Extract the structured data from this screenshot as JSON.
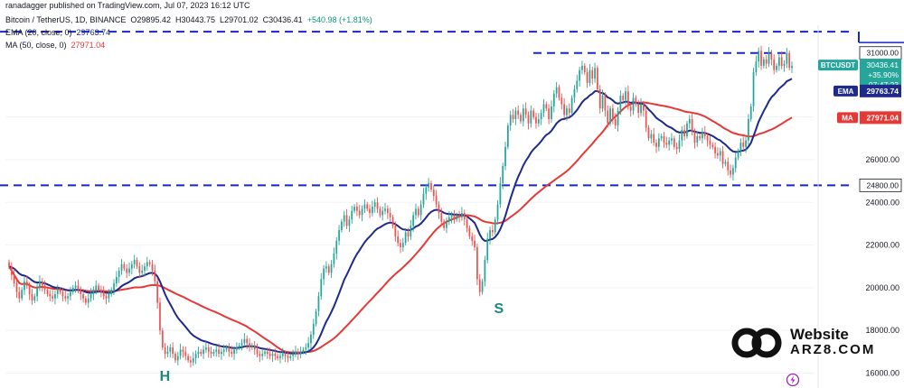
{
  "header": {
    "published": "ranadagger published on TradingView.com, Jul 07, 2023 16:12 UTC",
    "symbol_line": "Bitcoin / TetherUS, 1D, BINANCE",
    "ohlc": {
      "o_label": "O",
      "o": "29895.42",
      "h_label": "H",
      "h": "30443.75",
      "l_label": "L",
      "l": "29701.02",
      "c_label": "C",
      "c": "30436.41",
      "change": "+540.98 (+1.81%)"
    },
    "ema_line": {
      "label": "EMA (20, close, 0)",
      "value": "29763.74"
    },
    "ma_line": {
      "label": "MA (50, close, 0)",
      "value": "27971.04"
    }
  },
  "annotations": {
    "h": "H",
    "s": "S"
  },
  "watermark": {
    "line1": "Website",
    "line2": "ARZ8.COM"
  },
  "colors": {
    "up": "#26a69a",
    "down": "#ef5350",
    "ema": "#1e2a8c",
    "ma": "#e53935",
    "level": "#1428c8",
    "pattern_letter": "#1a8a7a"
  },
  "chart_data": [
    {
      "type": "candlestick",
      "symbol": "BTCUSDT",
      "price_axis": {
        "ticks": [
          16000,
          18000,
          20000,
          22000,
          24000,
          26000,
          28000
        ],
        "tick_labels": [
          "16000.00",
          "18000.00",
          "20000.00",
          "22000.00",
          "24000.00",
          "26000.00",
          "28000.00"
        ],
        "range": [
          15300,
          32300
        ]
      },
      "levels": [
        {
          "value": 31000,
          "label": "31000.00"
        },
        {
          "value": 24800,
          "label": "24800.00"
        },
        {
          "value": 32000,
          "label": ""
        }
      ],
      "price_tags": {
        "symbol": {
          "label": "BTCUSDT",
          "price": "30436.41",
          "change": "+35.90%",
          "countdown": "07:47:23"
        },
        "ema": {
          "label": "EMA",
          "value": "29763.74"
        },
        "ma": {
          "label": "MA",
          "value": "27971.04"
        }
      },
      "close": [
        21000,
        20600,
        20200,
        19800,
        19500,
        19900,
        20300,
        20100,
        19700,
        19400,
        19600,
        20000,
        20300,
        20100,
        19900,
        19700,
        19600,
        19500,
        19700,
        19900,
        19800,
        19600,
        19500,
        19600,
        19800,
        20000,
        20100,
        19900,
        19700,
        19500,
        19300,
        19500,
        19700,
        19900,
        20100,
        19900,
        19800,
        19600,
        19500,
        19700,
        19900,
        20200,
        20500,
        20800,
        21100,
        20900,
        20700,
        20900,
        21100,
        21300,
        21000,
        20700,
        20800,
        21000,
        21200,
        21100,
        20800,
        20300,
        19300,
        18000,
        17200,
        16900,
        17000,
        17200,
        16900,
        16600,
        16800,
        17100,
        17000,
        16800,
        16600,
        16500,
        16700,
        16900,
        17000,
        16900,
        17100,
        17200,
        17000,
        16900,
        17000,
        17100,
        16900,
        17000,
        17100,
        17200,
        17000,
        16900,
        17100,
        17200,
        17300,
        17400,
        17600,
        17400,
        17200,
        17300,
        17100,
        16900,
        16800,
        16900,
        17000,
        16900,
        16800,
        16900,
        16800,
        16700,
        16800,
        16900,
        16800,
        16700,
        16800,
        16900,
        17000,
        16900,
        17000,
        17100,
        17200,
        17400,
        17800,
        18300,
        18900,
        19600,
        20400,
        20900,
        21000,
        20700,
        21100,
        21600,
        22200,
        22700,
        23100,
        23400,
        22900,
        23200,
        23600,
        23800,
        23600,
        23400,
        23700,
        23900,
        23700,
        23500,
        23800,
        24000,
        23700,
        23400,
        23600,
        23700,
        23500,
        23300,
        22900,
        22400,
        22100,
        21900,
        22100,
        22600,
        22400,
        22900,
        23400,
        23700,
        23400,
        23900,
        24400,
        24700,
        24900,
        24600,
        24300,
        23900,
        23500,
        23100,
        22800,
        23100,
        23300,
        23400,
        23200,
        23400,
        23300,
        23500,
        23200,
        22800,
        22400,
        22200,
        21900,
        20400,
        19800,
        20300,
        21300,
        22300,
        22700,
        22600,
        23200,
        23900,
        24900,
        25700,
        26600,
        27600,
        28100,
        27900,
        28300,
        28100,
        27800,
        28400,
        28100,
        27700,
        28300,
        28000,
        27700,
        27900,
        28200,
        28600,
        28400,
        27900,
        28500,
        29100,
        29400,
        28900,
        28600,
        28100,
        28400,
        28200,
        28900,
        29300,
        29700,
        30200,
        30400,
        30100,
        29600,
        30200,
        29800,
        30300,
        29300,
        28400,
        29000,
        28300,
        27700,
        28400,
        27900,
        27600,
        28300,
        29000,
        28800,
        29200,
        28500,
        28300,
        28900,
        28600,
        28200,
        28600,
        28300,
        27500,
        27000,
        27200,
        26800,
        26600,
        27000,
        27100,
        26800,
        26700,
        26900,
        27000,
        26600,
        26500,
        26900,
        27400,
        27100,
        27700,
        27900,
        27300,
        26800,
        27100,
        27000,
        27300,
        27100,
        26900,
        26700,
        26600,
        26300,
        26200,
        26400,
        25800,
        25900,
        25500,
        25300,
        25600,
        26100,
        26400,
        26800,
        26600,
        26900,
        27900,
        28500,
        30100,
        30600,
        31100,
        30400,
        30700,
        30500,
        31000,
        30700,
        30200,
        30400,
        30800,
        30400,
        30500,
        31000,
        30300,
        30400
      ],
      "ema20_last": 29763.74,
      "ma50_last": 27971.04,
      "annotations": [
        {
          "text": "H",
          "at_index": 61
        },
        {
          "text": "S",
          "at_index": 191
        }
      ]
    }
  ]
}
